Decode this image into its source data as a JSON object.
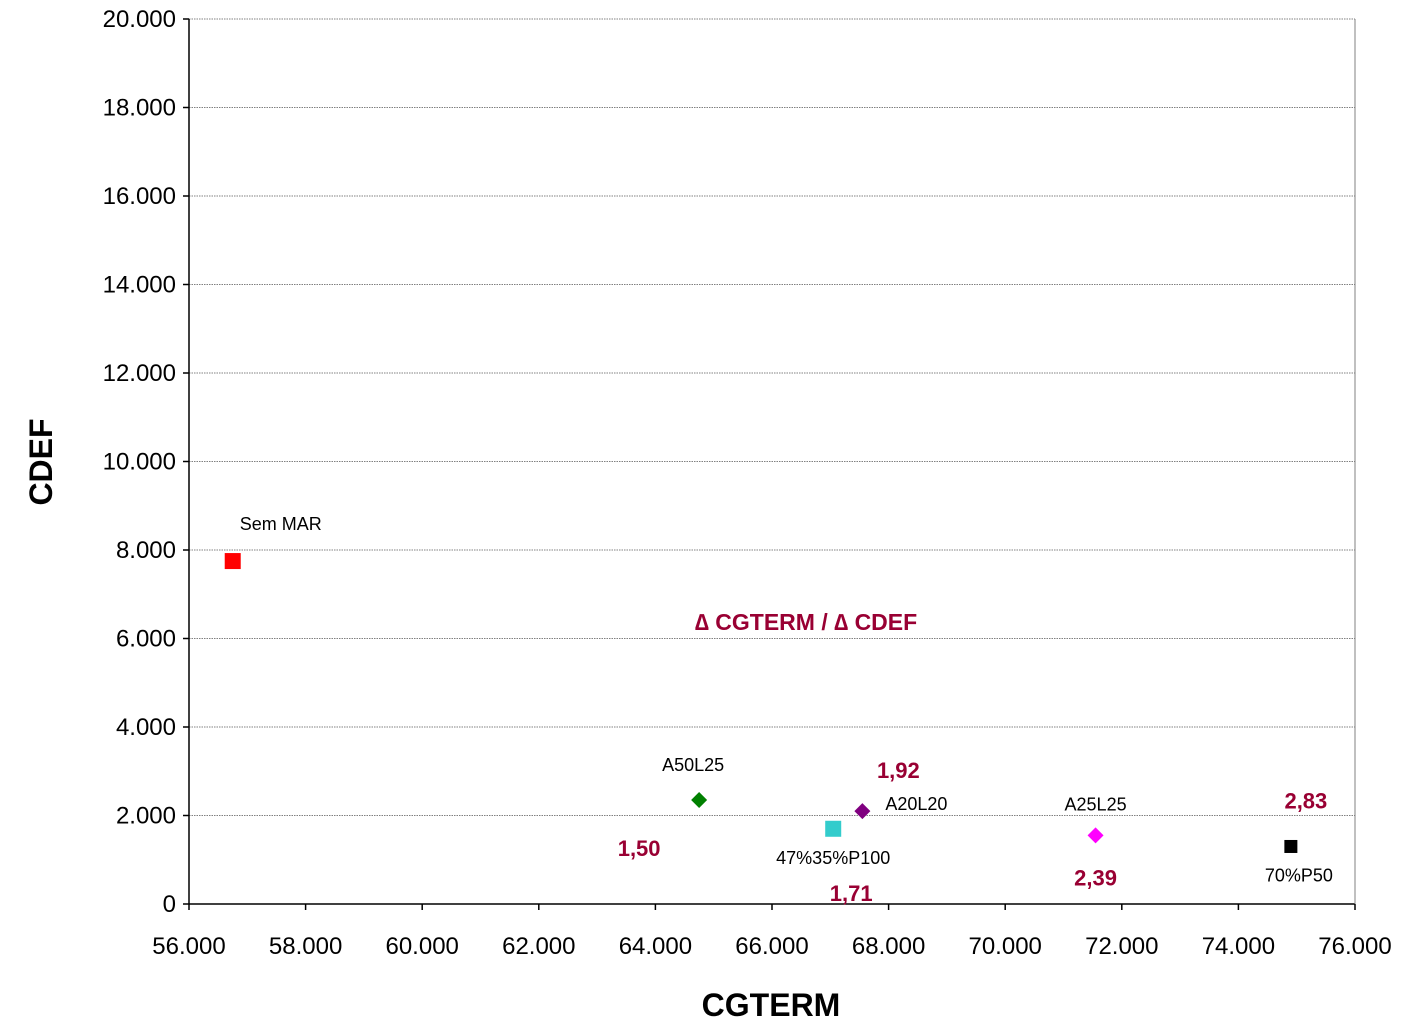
{
  "chart_data": {
    "type": "scatter",
    "xlabel": "CGTERM",
    "ylabel": "CDEF",
    "xlim": [
      56000,
      76000
    ],
    "ylim": [
      0,
      20000
    ],
    "x_tick_values": [
      56000,
      58000,
      60000,
      62000,
      64000,
      66000,
      68000,
      70000,
      72000,
      74000,
      76000
    ],
    "x_tick_labels": [
      "56.000",
      "58.000",
      "60.000",
      "62.000",
      "64.000",
      "66.000",
      "68.000",
      "70.000",
      "72.000",
      "74.000",
      "76.000"
    ],
    "y_tick_values": [
      0,
      2000,
      4000,
      6000,
      8000,
      10000,
      12000,
      14000,
      16000,
      18000,
      20000
    ],
    "y_tick_labels": [
      "0",
      "2.000",
      "4.000",
      "6.000",
      "8.000",
      "10.000",
      "12.000",
      "14.000",
      "16.000",
      "18.000",
      "20.000"
    ],
    "grid": "horizontal",
    "annotation": "∆ CGTERM / ∆ CDEF",
    "points": [
      {
        "name": "Sem MAR",
        "x": 56750,
        "y": 7750,
        "color": "#ff0000",
        "marker": "square",
        "ratio": null
      },
      {
        "name": "A50L25",
        "x": 64750,
        "y": 2350,
        "color": "#008000",
        "marker": "diamond",
        "ratio": "1,50"
      },
      {
        "name": "47%35%P100",
        "x": 67050,
        "y": 1700,
        "color": "#33cccc",
        "marker": "square",
        "ratio": "1,71"
      },
      {
        "name": "A20L20",
        "x": 67550,
        "y": 2100,
        "color": "#800080",
        "marker": "diamond",
        "ratio": "1,92"
      },
      {
        "name": "A25L25",
        "x": 71550,
        "y": 1550,
        "color": "#ff00ff",
        "marker": "diamond",
        "ratio": "2,39"
      },
      {
        "name": "70%P50",
        "x": 74900,
        "y": 1300,
        "color": "#000000",
        "marker": "square",
        "ratio": "2,83"
      }
    ],
    "colors": {
      "ratio_text": "#990033",
      "grid": "#808080",
      "axis": "#000000"
    }
  }
}
